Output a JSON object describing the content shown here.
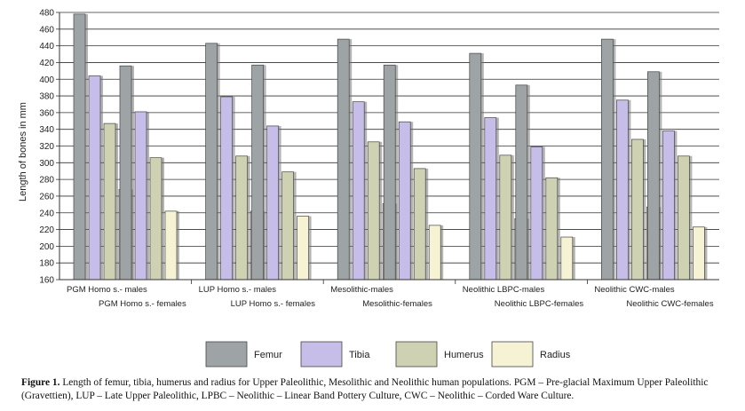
{
  "chart_data": {
    "type": "bar",
    "title": "",
    "xlabel": "",
    "ylabel": "Length of bones in mm",
    "ylim": [
      160,
      480
    ],
    "ytick_step": 20,
    "grid": true,
    "legend_position": "bottom",
    "series_names": [
      "Femur",
      "Tibia",
      "Humerus",
      "Radius"
    ],
    "series_colors": [
      "#9ea4a5",
      "#c6bde9",
      "#cfd2b2",
      "#f6f3d4"
    ],
    "groups": [
      {
        "label": "PGM Homo s.- males",
        "values": [
          478,
          404,
          347,
          268
        ]
      },
      {
        "label": "PGM Homo s.- females",
        "values": [
          416,
          361,
          306,
          242
        ]
      },
      {
        "label": "LUP Homo s.- males",
        "values": [
          443,
          379,
          308,
          242
        ]
      },
      {
        "label": "LUP Homo s.- females",
        "values": [
          417,
          344,
          289,
          236
        ]
      },
      {
        "label": "Mesolithic-males",
        "values": [
          448,
          373,
          325,
          251
        ]
      },
      {
        "label": "Mesolithic-females",
        "values": [
          417,
          349,
          293,
          225
        ]
      },
      {
        "label": "Neolithic LBPC-males",
        "values": [
          431,
          354,
          309,
          233
        ]
      },
      {
        "label": "Neolithic LBPC-females",
        "values": [
          393,
          319,
          282,
          211
        ]
      },
      {
        "label": "Neolithic CWC-males",
        "values": [
          448,
          375,
          328,
          247
        ]
      },
      {
        "label": "Neolithic CWC-females",
        "values": [
          409,
          338,
          308,
          223
        ]
      }
    ]
  },
  "caption": {
    "bold": "Figure 1.",
    "text": "Length of femur, tibia, humerus and radius for Upper Paleolithic, Mesolithic and Neolithic human populations.  PGM – Pre-glacial Maximum Upper Paleolithic (Gravettien), LUP – Late Upper Paleolithic, LPBC – Neolithic – Linear Band Pottery Culture, CWC – Neolithic – Corded Ware Culture."
  }
}
